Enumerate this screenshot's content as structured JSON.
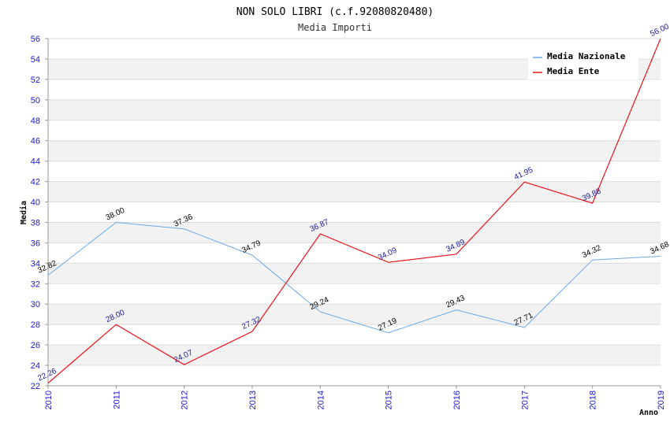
{
  "chart_data": {
    "type": "line",
    "title": "NON SOLO LIBRI (c.f.92080820480)",
    "subtitle": "Media Importi",
    "xlabel": "Anno",
    "ylabel": "Media",
    "categories": [
      "2010",
      "2011",
      "2012",
      "2013",
      "2014",
      "2015",
      "2016",
      "2017",
      "2018",
      "2019"
    ],
    "ylim": [
      22,
      56
    ],
    "ytick_step": 2,
    "grid": true,
    "legend_position": "top-right",
    "series": [
      {
        "name": "Media Nazionale",
        "color": "#6aa9e6",
        "label_color": "#000000",
        "values": [
          32.82,
          38.0,
          37.36,
          34.79,
          29.24,
          27.19,
          29.43,
          27.71,
          34.32,
          34.68
        ],
        "labels": [
          "32.82",
          "38.00",
          "37.36",
          "34.79",
          "29.24",
          "27.19",
          "29.43",
          "27.71",
          "34.32",
          "34.68"
        ]
      },
      {
        "name": "Media Ente",
        "color": "#e8141a",
        "label_color": "#1a1a99",
        "values": [
          22.26,
          28.0,
          24.07,
          27.32,
          36.87,
          34.09,
          34.89,
          41.95,
          39.88,
          56.0
        ],
        "labels": [
          "22.26",
          "28.00",
          "24.07",
          "27.32",
          "36.87",
          "34.09",
          "34.89",
          "41.95",
          "39.88",
          "56.00"
        ]
      }
    ]
  }
}
